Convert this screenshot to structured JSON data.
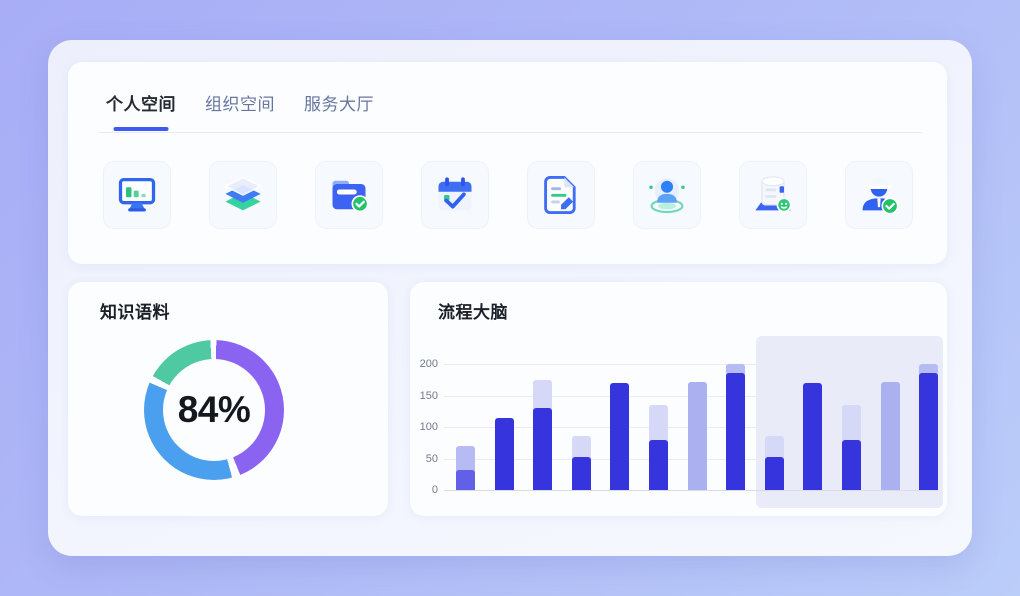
{
  "workspace_tabs": {
    "items": [
      {
        "label": "个人空间",
        "active": true
      },
      {
        "label": "组织空间",
        "active": false
      },
      {
        "label": "服务大厅",
        "active": false
      }
    ],
    "active_color": "#262b33",
    "inactive_color": "#68769f",
    "underline_color": "#3d5af1"
  },
  "app_icons": {
    "items": [
      {
        "name": "dashboard-monitor-icon"
      },
      {
        "name": "layer-stack-icon"
      },
      {
        "name": "folder-approved-icon"
      },
      {
        "name": "calendar-check-icon"
      },
      {
        "name": "document-edit-icon"
      },
      {
        "name": "user-location-icon"
      },
      {
        "name": "database-icon"
      },
      {
        "name": "engineer-check-icon"
      }
    ]
  },
  "knowledge_card": {
    "title": "知识语料",
    "center_label": "84%"
  },
  "process_card": {
    "title": "流程大脑"
  },
  "chart_data": [
    {
      "type": "pie",
      "variant": "donut",
      "title": "知识语料",
      "center_label": "84%",
      "legend_position": "none",
      "segments": [
        {
          "name": "purple",
          "color": "#8a63f1",
          "start_deg": 2,
          "end_deg": 158,
          "percent": 43
        },
        {
          "name": "blue",
          "color": "#4aa0ee",
          "start_deg": 165,
          "end_deg": 293,
          "percent": 36
        },
        {
          "name": "teal",
          "color": "#4fc9a2",
          "start_deg": 299,
          "end_deg": 357,
          "percent": 16
        }
      ]
    },
    {
      "type": "bar",
      "title": "流程大脑",
      "xlabel": "",
      "ylabel": "",
      "ylim": [
        0,
        200
      ],
      "yticks": [
        0,
        50,
        100,
        150,
        200
      ],
      "grid": true,
      "legend_position": "none",
      "tones": {
        "full": "#3634dc",
        "medium": "#6360e8",
        "soft": "#aab0f0",
        "pale": "#d5d8f7",
        "lighter": "#b6bbf3"
      },
      "bars": [
        {
          "dark": 32,
          "dark_tone": "medium",
          "light": 70,
          "light_tone": "lighter",
          "panel": "a"
        },
        {
          "dark": 115,
          "dark_tone": "full",
          "light": null,
          "light_tone": null,
          "panel": "a"
        },
        {
          "dark": 130,
          "dark_tone": "full",
          "light": 175,
          "light_tone": "pale",
          "panel": "a"
        },
        {
          "dark": 52,
          "dark_tone": "full",
          "light": 85,
          "light_tone": "pale",
          "panel": "a"
        },
        {
          "dark": 170,
          "dark_tone": "full",
          "light": null,
          "light_tone": null,
          "panel": "a"
        },
        {
          "dark": 80,
          "dark_tone": "full",
          "light": 135,
          "light_tone": "pale",
          "panel": "a"
        },
        {
          "dark": 172,
          "dark_tone": "soft",
          "light": null,
          "light_tone": null,
          "panel": "a"
        },
        {
          "dark": 185,
          "dark_tone": "full",
          "light": 200,
          "light_tone": "lighter",
          "panel": "a"
        },
        {
          "dark": 52,
          "dark_tone": "full",
          "light": 85,
          "light_tone": "pale",
          "panel": "b"
        },
        {
          "dark": 170,
          "dark_tone": "full",
          "light": null,
          "light_tone": null,
          "panel": "b"
        },
        {
          "dark": 80,
          "dark_tone": "full",
          "light": 135,
          "light_tone": "pale",
          "panel": "b"
        },
        {
          "dark": 172,
          "dark_tone": "soft",
          "light": null,
          "light_tone": null,
          "panel": "b"
        },
        {
          "dark": 185,
          "dark_tone": "full",
          "light": 200,
          "light_tone": "lighter",
          "panel": "b"
        }
      ]
    }
  ]
}
